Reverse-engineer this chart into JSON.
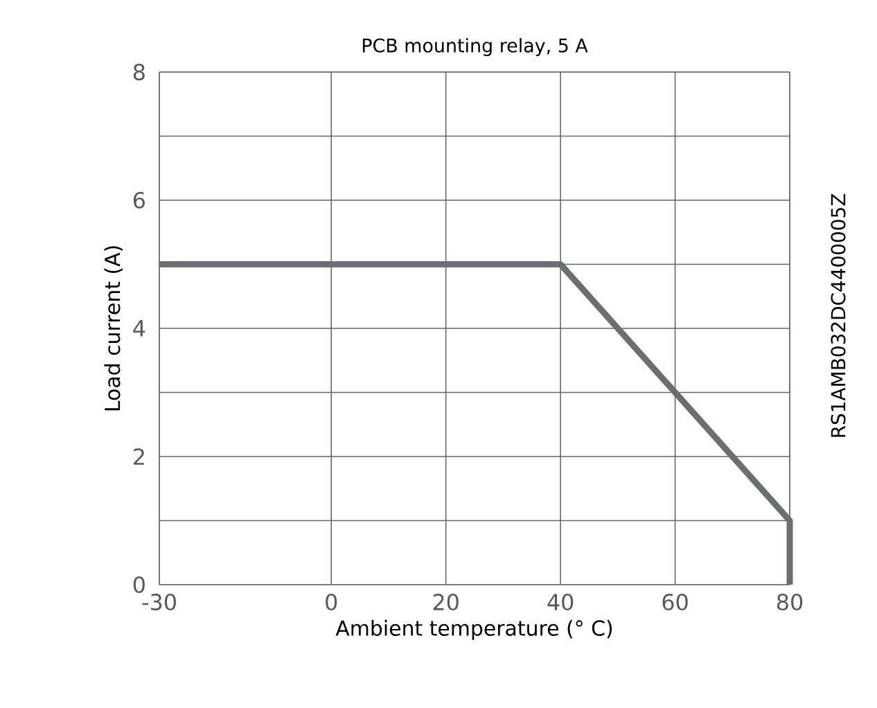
{
  "chart_data": {
    "type": "line",
    "title": "PCB mounting relay, 5 A",
    "xlabel": "Ambient temperature (° C)",
    "ylabel": "Load current (A)",
    "annotations": [
      "RS1AMB032DC4400005Z"
    ],
    "series": [
      {
        "color": "#6d6e70",
        "x": [
          -30,
          40,
          80,
          80
        ],
        "values": [
          5,
          5,
          1,
          0
        ]
      }
    ],
    "xlim": [
      -30,
      80
    ],
    "xticks": [
      -30,
      0,
      20,
      40,
      60,
      80
    ],
    "ylim": [
      0,
      8
    ],
    "yticks": [
      0,
      {
        "value": 1,
        "label": null
      },
      2,
      {
        "value": 3,
        "label": null
      },
      4,
      {
        "value": 5,
        "label": null
      },
      6,
      {
        "value": 7,
        "label": null
      },
      8
    ],
    "grid": true,
    "marker": "none",
    "line_style": "solid"
  }
}
